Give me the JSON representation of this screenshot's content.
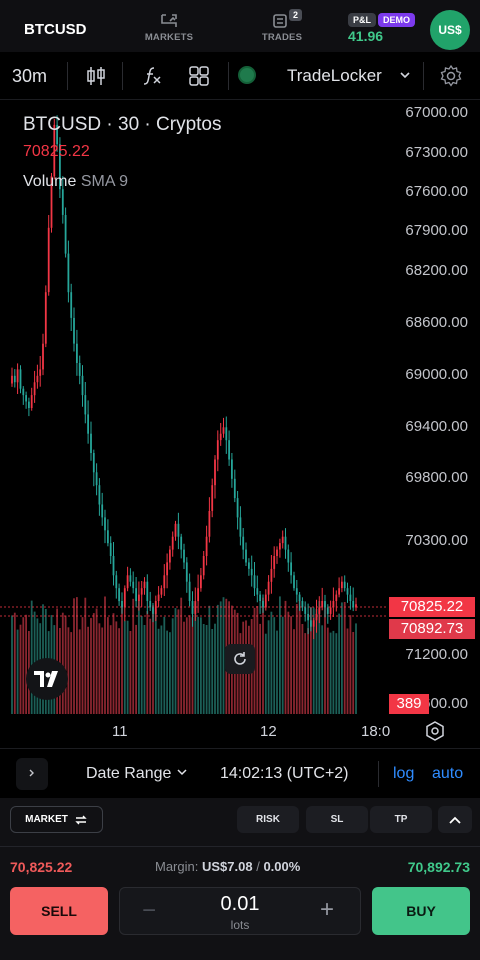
{
  "header": {
    "symbol": "BTCUSD",
    "nav": [
      {
        "label": "MARKETS",
        "icon": "markets-icon"
      },
      {
        "label": "TRADES",
        "icon": "trades-icon",
        "badge": "2"
      }
    ],
    "pnl_label": "P&L",
    "demo_label": "DEMO",
    "pnl_value": "41.96",
    "account_avatar": "US$"
  },
  "toolbar": {
    "interval": "30m",
    "broker": "TradeLocker",
    "icons": [
      "candles-icon",
      "indicators-icon",
      "layouts-icon",
      "broker-status-icon",
      "chevron-down-icon",
      "settings-gear-icon"
    ]
  },
  "chart": {
    "legend_title": "BTCUSD · 30 · Cryptos",
    "legend_price": "70825.22",
    "volume_label": "Volume",
    "volume_sma": "SMA 9",
    "price_scale": [
      "67000.00",
      "67300.00",
      "67600.00",
      "67900.00",
      "68200.00",
      "68600.00",
      "69000.00",
      "69400.00",
      "69800.00",
      "70300.00",
      "71200.00",
      "71600.00"
    ],
    "bid_tag": "70825.22",
    "ask_tag": "70892.73",
    "volume_tag": "389",
    "time_labels": [
      "11",
      "12",
      "18:0"
    ],
    "colors": {
      "up": "#26a69a",
      "down": "#f23645"
    }
  },
  "chart_data": {
    "type": "candlestick",
    "title": "BTCUSD · 30 · Cryptos",
    "inverted_price_scale": true,
    "ylim": [
      67000,
      71600
    ],
    "closes": [
      69050,
      69100,
      69000,
      69150,
      69200,
      69250,
      69300,
      69200,
      69100,
      69050,
      69000,
      68800,
      68400,
      67900,
      67500,
      67100,
      67250,
      67600,
      67800,
      68100,
      68400,
      68600,
      68800,
      68950,
      69050,
      69200,
      69350,
      69500,
      69650,
      69800,
      69900,
      70050,
      70150,
      70250,
      70350,
      70450,
      70600,
      70700,
      70800,
      70850,
      70700,
      70600,
      70650,
      70700,
      70800,
      70750,
      70700,
      70650,
      70800,
      70850,
      70900,
      70800,
      70750,
      70700,
      70600,
      70500,
      70400,
      70300,
      70200,
      70300,
      70400,
      70500,
      70650,
      70800,
      70900,
      70800,
      70700,
      70600,
      70450,
      70300,
      70100,
      69900,
      69700,
      69550,
      69500,
      69450,
      69550,
      69700,
      69850,
      70000,
      70150,
      70300,
      70400,
      70500,
      70550,
      70600,
      70700,
      70750,
      70800,
      70850,
      70750,
      70650,
      70550,
      70450,
      70400,
      70350,
      70300,
      70400,
      70500,
      70600,
      70700,
      70750,
      70800,
      70850,
      70900,
      70950,
      71000,
      70950,
      70900,
      70850,
      70800,
      70850,
      70900,
      70850,
      70800,
      70750,
      70700,
      70650,
      70700,
      70750,
      70800,
      70850,
      70825
    ],
    "volume_sma_series": "SMA 9",
    "last_volume": 389
  },
  "range_bar": {
    "date_range": "Date Range",
    "clock": "14:02:13 (UTC+2)",
    "log": "log",
    "auto": "auto"
  },
  "order": {
    "type": "MARKET",
    "risk": "RISK",
    "sl": "SL",
    "tp": "TP",
    "bid": "70,825.22",
    "margin_label": "Margin:",
    "margin_value": "US$7.08",
    "margin_sep": "/",
    "margin_pct": "0.00%",
    "ask": "70,892.73",
    "sell": "SELL",
    "buy": "BUY",
    "quantity": "0.01",
    "unit": "lots"
  }
}
